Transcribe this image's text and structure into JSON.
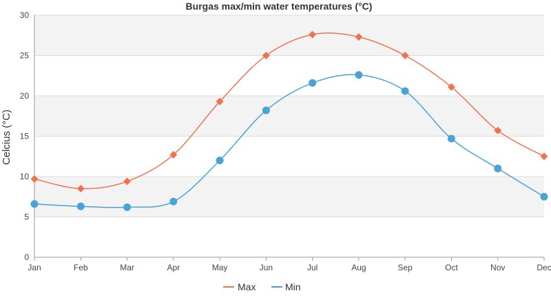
{
  "chart_data": {
    "type": "line",
    "title": "Burgas max/min water temperatures (°C)",
    "xlabel": "",
    "ylabel": "Celcius (°C)",
    "categories": [
      "Jan",
      "Feb",
      "Mar",
      "Apr",
      "May",
      "Jun",
      "Jul",
      "Aug",
      "Sep",
      "Oct",
      "Nov",
      "Dec"
    ],
    "ylim": [
      0,
      30
    ],
    "yticks": [
      0,
      5,
      10,
      15,
      20,
      25,
      30
    ],
    "grid": true,
    "legend_position": "bottom-center",
    "series": [
      {
        "name": "Max",
        "color": "#f0734f",
        "marker": "diamond",
        "values": [
          9.7,
          8.5,
          9.4,
          12.7,
          19.3,
          25.0,
          27.6,
          27.3,
          25.0,
          21.1,
          15.7,
          12.5
        ]
      },
      {
        "name": "Min",
        "color": "#4aa3d6",
        "marker": "circle",
        "values": [
          6.6,
          6.3,
          6.2,
          6.9,
          12.0,
          18.2,
          21.6,
          22.6,
          20.6,
          14.7,
          11.0,
          7.5
        ]
      }
    ]
  }
}
